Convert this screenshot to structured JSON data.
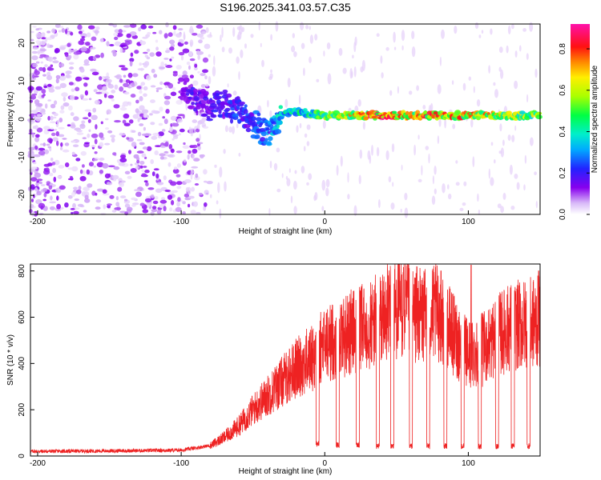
{
  "title": "S196.2025.341.03.57.C35",
  "chart_data": [
    {
      "type": "heatmap",
      "name": "spectrogram",
      "xlabel": "Height of straight line (km)",
      "ylabel": "Frequency (Hz)",
      "xlim": [
        -205,
        150
      ],
      "ylim": [
        -25,
        25
      ],
      "xticks": [
        -200,
        -100,
        0,
        100
      ],
      "yticks": [
        -20,
        -10,
        0,
        10,
        20
      ],
      "xtick_labels": [
        "-200",
        "-100",
        "0",
        "100"
      ],
      "ytick_labels": [
        "-20",
        "-10",
        "0",
        "10",
        "20"
      ],
      "colorbar": {
        "label": "Normalized spectral amplitude",
        "range": [
          0,
          0.92
        ],
        "ticks": [
          0.0,
          0.2,
          0.4,
          0.6,
          0.8
        ],
        "tick_labels": [
          "0.0",
          "0.2",
          "0.4",
          "0.6",
          "0.8"
        ]
      },
      "ridge": {
        "x": [
          -100,
          -90,
          -80,
          -70,
          -60,
          -50,
          -40,
          -30,
          -20,
          -10,
          0,
          20,
          40,
          60,
          80,
          100,
          120,
          150
        ],
        "y": [
          9,
          5,
          3,
          4,
          2,
          -1,
          -4,
          1,
          2,
          1.5,
          1,
          1,
          1,
          1,
          1,
          1,
          1,
          1
        ],
        "amplitude": [
          0.15,
          0.2,
          0.2,
          0.22,
          0.25,
          0.25,
          0.3,
          0.4,
          0.45,
          0.5,
          0.55,
          0.7,
          0.85,
          0.75,
          0.8,
          0.75,
          0.7,
          0.6
        ]
      }
    },
    {
      "type": "line",
      "name": "snr",
      "xlabel": "Height of straight line (km)",
      "ylabel": "SNR (10 * v/v)",
      "xlim": [
        -205,
        150
      ],
      "ylim": [
        0,
        830
      ],
      "xticks": [
        -200,
        -100,
        0,
        100
      ],
      "yticks": [
        0,
        200,
        400,
        600,
        800
      ],
      "xtick_labels": [
        "-200",
        "-100",
        "0",
        "100"
      ],
      "ytick_labels": [
        "0",
        "200",
        "400",
        "600",
        "800"
      ],
      "color": "#ee2222",
      "envelope": {
        "x": [
          -205,
          -150,
          -100,
          -90,
          -80,
          -70,
          -60,
          -50,
          -40,
          -30,
          -20,
          -10,
          0,
          10,
          20,
          30,
          40,
          50,
          60,
          70,
          80,
          90,
          100,
          110,
          120,
          130,
          140,
          150
        ],
        "y": [
          20,
          22,
          25,
          35,
          45,
          80,
          130,
          200,
          260,
          320,
          380,
          420,
          480,
          510,
          540,
          560,
          600,
          640,
          620,
          600,
          620,
          520,
          440,
          460,
          520,
          560,
          570,
          580
        ]
      },
      "spikes": [
        {
          "x": 55,
          "y": 815
        },
        {
          "x": 81,
          "y": 800
        },
        {
          "x": 102,
          "y": 825
        },
        {
          "x": 149,
          "y": 800
        }
      ],
      "dips": {
        "x": [
          -5,
          9,
          23,
          37,
          47,
          60,
          72,
          84,
          96,
          108,
          120,
          131,
          142
        ],
        "y": [
          40,
          35,
          35,
          30,
          30,
          30,
          30,
          30,
          30,
          30,
          30,
          30,
          30
        ]
      }
    }
  ]
}
